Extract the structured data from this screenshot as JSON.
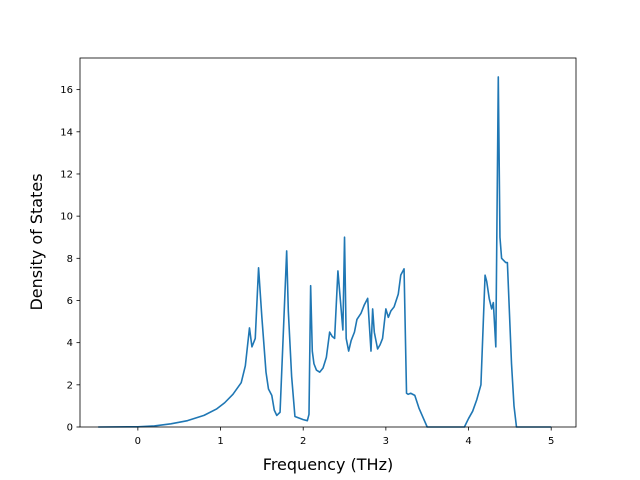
{
  "chart_data": {
    "type": "line",
    "title": "",
    "xlabel": "Frequency (THz)",
    "ylabel": "Density of States",
    "xlim": [
      -0.7,
      5.3
    ],
    "ylim": [
      0,
      17.5
    ],
    "xticks": [
      0,
      1,
      2,
      3,
      4,
      5
    ],
    "yticks": [
      0,
      2,
      4,
      6,
      8,
      10,
      12,
      14,
      16
    ],
    "grid": false,
    "legend": "none",
    "series": [
      {
        "color": "#1f77b4",
        "x": [
          -0.48,
          0.0,
          0.2,
          0.4,
          0.6,
          0.8,
          0.95,
          1.05,
          1.15,
          1.25,
          1.3,
          1.35,
          1.38,
          1.42,
          1.46,
          1.5,
          1.55,
          1.58,
          1.62,
          1.65,
          1.68,
          1.72,
          1.76,
          1.8,
          1.82,
          1.86,
          1.9,
          2.0,
          2.05,
          2.07,
          2.09,
          2.11,
          2.13,
          2.16,
          2.2,
          2.24,
          2.28,
          2.32,
          2.35,
          2.38,
          2.42,
          2.45,
          2.48,
          2.5,
          2.52,
          2.55,
          2.58,
          2.62,
          2.65,
          2.7,
          2.74,
          2.78,
          2.82,
          2.84,
          2.86,
          2.9,
          2.93,
          2.96,
          3.0,
          3.03,
          3.06,
          3.1,
          3.15,
          3.18,
          3.22,
          3.25,
          3.27,
          3.3,
          3.35,
          3.4,
          3.45,
          3.5,
          3.6,
          3.95,
          4.0,
          4.05,
          4.1,
          4.15,
          4.2,
          4.22,
          4.25,
          4.28,
          4.3,
          4.33,
          4.36,
          4.38,
          4.4,
          4.45,
          4.47,
          4.52,
          4.55,
          4.58,
          4.65,
          5.0
        ],
        "values": [
          0,
          0.01,
          0.05,
          0.15,
          0.3,
          0.55,
          0.85,
          1.15,
          1.55,
          2.1,
          2.9,
          4.7,
          3.8,
          4.2,
          7.55,
          5.2,
          2.6,
          1.8,
          1.5,
          0.8,
          0.55,
          0.7,
          4.5,
          8.35,
          5.5,
          2.4,
          0.5,
          0.35,
          0.3,
          0.6,
          6.7,
          3.6,
          3.0,
          2.7,
          2.6,
          2.8,
          3.3,
          4.5,
          4.3,
          4.2,
          7.4,
          6.0,
          4.6,
          9.0,
          4.2,
          3.6,
          4.1,
          4.5,
          5.1,
          5.4,
          5.8,
          6.1,
          3.6,
          5.6,
          4.5,
          3.7,
          3.9,
          4.2,
          5.6,
          5.2,
          5.5,
          5.7,
          6.3,
          7.2,
          7.5,
          1.6,
          1.55,
          1.6,
          1.5,
          0.9,
          0.45,
          0,
          0,
          0,
          0.4,
          0.75,
          1.3,
          2.0,
          7.2,
          6.9,
          6.1,
          5.6,
          5.9,
          3.8,
          16.6,
          9.0,
          8.0,
          7.8,
          7.8,
          3.0,
          1.0,
          0,
          0,
          0
        ]
      }
    ]
  }
}
